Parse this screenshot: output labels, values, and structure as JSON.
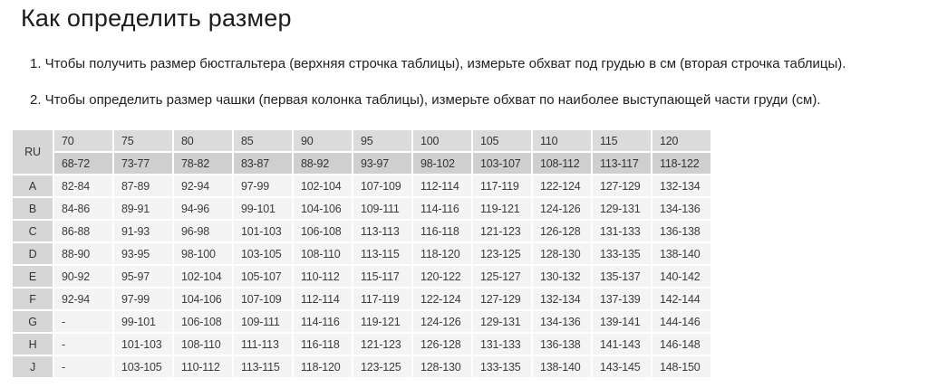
{
  "page": {
    "title": "Как определить размер",
    "instructions": [
      "1. Чтобы получить размер бюстгальтера (верхняя строчка таблицы), измерьте обхват под грудью в см (вторая строчка таблицы).",
      "2. Чтобы определить размер чашки (первая колонка таблицы), измерьте обхват по наиболее выступающей части груди (см)."
    ]
  },
  "table": {
    "corner_label": "RU",
    "sizes": [
      "70",
      "75",
      "80",
      "85",
      "90",
      "95",
      "100",
      "105",
      "110",
      "115",
      "120"
    ],
    "underbust": [
      "68-72",
      "73-77",
      "78-82",
      "83-87",
      "88-92",
      "93-97",
      "98-102",
      "103-107",
      "108-112",
      "113-117",
      "118-122"
    ],
    "rows": [
      {
        "cup": "A",
        "values": [
          "82-84",
          "87-89",
          "92-94",
          "97-99",
          "102-104",
          "107-109",
          "112-114",
          "117-119",
          "122-124",
          "127-129",
          "132-134"
        ]
      },
      {
        "cup": "B",
        "values": [
          "84-86",
          "89-91",
          "94-96",
          "99-101",
          "104-106",
          "109-111",
          "114-116",
          "119-121",
          "124-126",
          "129-131",
          "134-136"
        ]
      },
      {
        "cup": "C",
        "values": [
          "86-88",
          "91-93",
          "96-98",
          "101-103",
          "106-108",
          "113-113",
          "116-118",
          "121-123",
          "126-128",
          "131-133",
          "136-138"
        ]
      },
      {
        "cup": "D",
        "values": [
          "88-90",
          "93-95",
          "98-100",
          "103-105",
          "108-110",
          "113-115",
          "118-120",
          "123-125",
          "128-130",
          "133-135",
          "138-140"
        ]
      },
      {
        "cup": "E",
        "values": [
          "90-92",
          "95-97",
          "102-104",
          "105-107",
          "110-112",
          "115-117",
          "120-122",
          "125-127",
          "130-132",
          "135-137",
          "140-142"
        ]
      },
      {
        "cup": "F",
        "values": [
          "92-94",
          "97-99",
          "104-106",
          "107-109",
          "112-114",
          "117-119",
          "122-124",
          "127-129",
          "132-134",
          "137-139",
          "142-144"
        ]
      },
      {
        "cup": "G",
        "values": [
          "-",
          "99-101",
          "106-108",
          "109-111",
          "114-116",
          "119-121",
          "124-126",
          "129-131",
          "134-136",
          "139-141",
          "144-146"
        ]
      },
      {
        "cup": "H",
        "values": [
          "-",
          "101-103",
          "108-110",
          "111-113",
          "116-118",
          "121-123",
          "126-128",
          "131-133",
          "136-138",
          "141-143",
          "146-148"
        ]
      },
      {
        "cup": "J",
        "values": [
          "-",
          "103-105",
          "110-112",
          "113-115",
          "118-120",
          "123-125",
          "128-130",
          "133-135",
          "138-140",
          "143-145",
          "148-150"
        ]
      }
    ]
  },
  "colors": {
    "header_row1_bg": "#dbdbdb",
    "header_row2_bg": "#cfcfcf",
    "label_col_bg": "#d6d6d6",
    "cell_bg": "#f4f4f4",
    "table_gridline": "#ffffff",
    "text": "#212121",
    "table_text": "#3b3b3b"
  }
}
